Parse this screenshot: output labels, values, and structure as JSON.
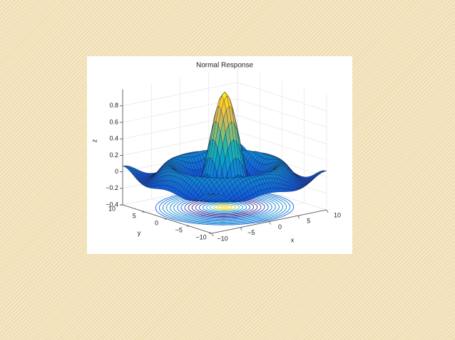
{
  "chart_data": {
    "type": "surface",
    "title": "Normal Response",
    "x_label": "x",
    "y_label": "y",
    "z_label": "z",
    "xlim": [
      -10,
      10
    ],
    "ylim": [
      -10,
      10
    ],
    "zlim": [
      -0.4,
      1
    ],
    "xticks": [
      {
        "value": -10,
        "label": "−10"
      },
      {
        "value": -5,
        "label": "−5"
      },
      0,
      5,
      10
    ],
    "yticks": [
      {
        "value": -10,
        "label": "−10"
      },
      {
        "value": -5,
        "label": "−5"
      },
      0,
      5,
      10
    ],
    "zticks": [
      {
        "value": -0.4,
        "label": "−0.4"
      },
      {
        "value": -0.2,
        "label": "−0.2"
      },
      0,
      0.2,
      0.4,
      0.6,
      0.8
    ],
    "grid": true
  }
}
